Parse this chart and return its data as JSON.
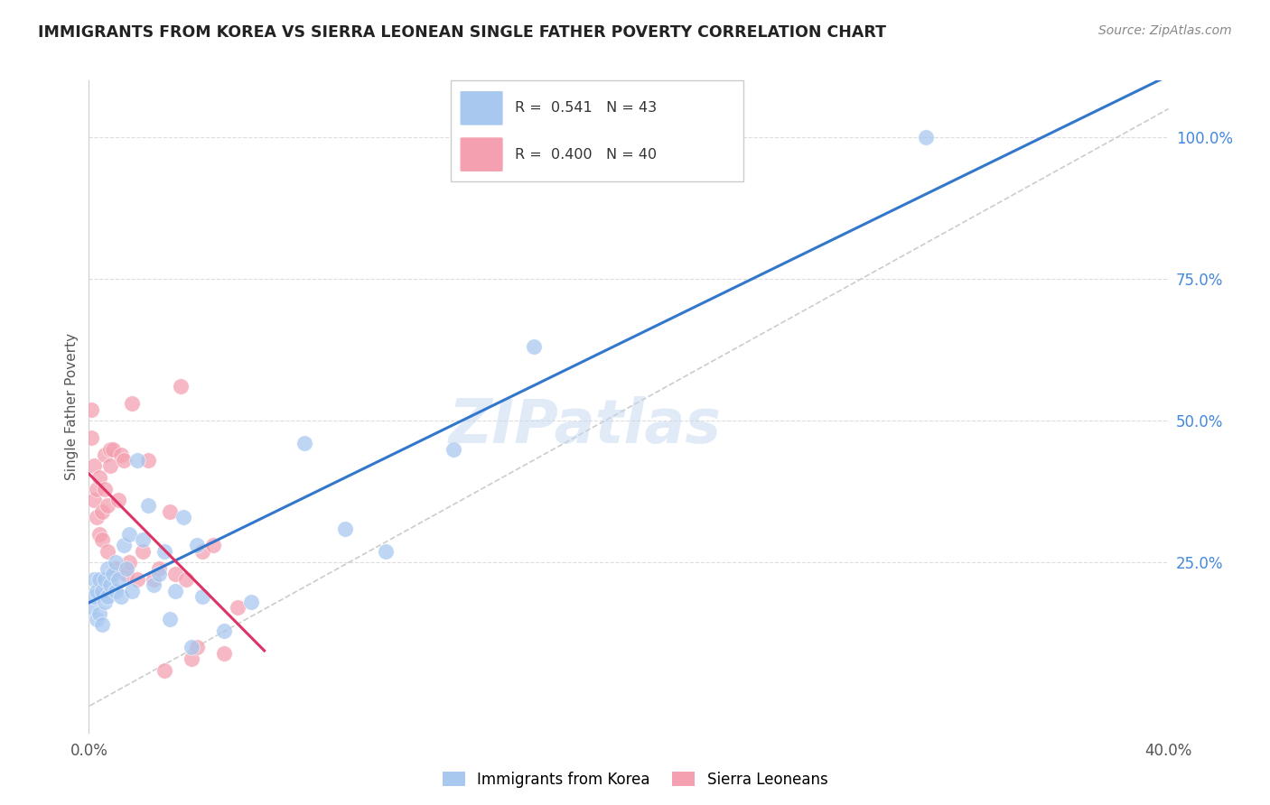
{
  "title": "IMMIGRANTS FROM KOREA VS SIERRA LEONEAN SINGLE FATHER POVERTY CORRELATION CHART",
  "source": "Source: ZipAtlas.com",
  "ylabel": "Single Father Poverty",
  "right_yticks": [
    "100.0%",
    "75.0%",
    "50.0%",
    "25.0%"
  ],
  "right_ytick_vals": [
    1.0,
    0.75,
    0.5,
    0.25
  ],
  "xlim": [
    0.0,
    0.4
  ],
  "ylim": [
    -0.05,
    1.1
  ],
  "korea_color": "#a8c8f0",
  "sierra_color": "#f4a0b0",
  "trendline_korea_color": "#3377cc",
  "trendline_sierra_color": "#dd3366",
  "diagonal_color": "#cccccc",
  "watermark": "ZIPatlas",
  "korea_x": [
    0.001,
    0.002,
    0.002,
    0.003,
    0.003,
    0.004,
    0.004,
    0.005,
    0.005,
    0.006,
    0.006,
    0.007,
    0.007,
    0.008,
    0.009,
    0.01,
    0.01,
    0.011,
    0.012,
    0.013,
    0.014,
    0.015,
    0.016,
    0.018,
    0.02,
    0.022,
    0.024,
    0.026,
    0.028,
    0.03,
    0.032,
    0.035,
    0.038,
    0.04,
    0.042,
    0.05,
    0.06,
    0.08,
    0.095,
    0.11,
    0.135,
    0.165,
    0.31
  ],
  "korea_y": [
    0.17,
    0.19,
    0.22,
    0.15,
    0.2,
    0.16,
    0.22,
    0.14,
    0.2,
    0.18,
    0.22,
    0.19,
    0.24,
    0.21,
    0.23,
    0.2,
    0.25,
    0.22,
    0.19,
    0.28,
    0.24,
    0.3,
    0.2,
    0.43,
    0.29,
    0.35,
    0.21,
    0.23,
    0.27,
    0.15,
    0.2,
    0.33,
    0.1,
    0.28,
    0.19,
    0.13,
    0.18,
    0.46,
    0.31,
    0.27,
    0.45,
    0.63,
    1.0
  ],
  "sierra_x": [
    0.001,
    0.001,
    0.002,
    0.002,
    0.003,
    0.003,
    0.004,
    0.004,
    0.005,
    0.005,
    0.006,
    0.006,
    0.007,
    0.007,
    0.008,
    0.008,
    0.009,
    0.01,
    0.011,
    0.012,
    0.013,
    0.014,
    0.015,
    0.016,
    0.018,
    0.02,
    0.022,
    0.024,
    0.026,
    0.028,
    0.03,
    0.032,
    0.034,
    0.036,
    0.038,
    0.04,
    0.042,
    0.046,
    0.05,
    0.055
  ],
  "sierra_y": [
    0.47,
    0.52,
    0.36,
    0.42,
    0.33,
    0.38,
    0.3,
    0.4,
    0.29,
    0.34,
    0.38,
    0.44,
    0.27,
    0.35,
    0.42,
    0.45,
    0.45,
    0.24,
    0.36,
    0.44,
    0.43,
    0.23,
    0.25,
    0.53,
    0.22,
    0.27,
    0.43,
    0.22,
    0.24,
    0.06,
    0.34,
    0.23,
    0.56,
    0.22,
    0.08,
    0.1,
    0.27,
    0.28,
    0.09,
    0.17
  ]
}
